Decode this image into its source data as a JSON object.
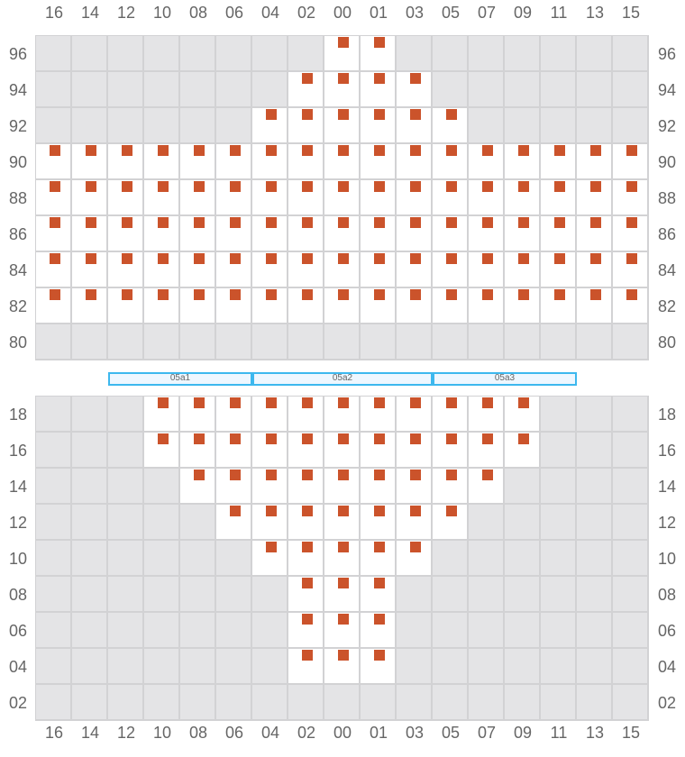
{
  "columns": [
    "16",
    "14",
    "12",
    "10",
    "08",
    "06",
    "04",
    "02",
    "00",
    "01",
    "03",
    "05",
    "07",
    "09",
    "11",
    "13",
    "15"
  ],
  "colors": {
    "seat": "#cb532b",
    "available": "#ffffff",
    "unavailable": "#e4e4e6",
    "section_border": "#3db8ee"
  },
  "top_block": {
    "rows": [
      {
        "label": "96",
        "seats": [
          "00",
          "01"
        ]
      },
      {
        "label": "94",
        "seats": [
          "02",
          "00",
          "01",
          "03"
        ]
      },
      {
        "label": "92",
        "seats": [
          "04",
          "02",
          "00",
          "01",
          "03",
          "05"
        ]
      },
      {
        "label": "90",
        "seats": [
          "16",
          "14",
          "12",
          "10",
          "08",
          "06",
          "04",
          "02",
          "00",
          "01",
          "03",
          "05",
          "07",
          "09",
          "11",
          "13",
          "15"
        ]
      },
      {
        "label": "88",
        "seats": [
          "16",
          "14",
          "12",
          "10",
          "08",
          "06",
          "04",
          "02",
          "00",
          "01",
          "03",
          "05",
          "07",
          "09",
          "11",
          "13",
          "15"
        ]
      },
      {
        "label": "86",
        "seats": [
          "16",
          "14",
          "12",
          "10",
          "08",
          "06",
          "04",
          "02",
          "00",
          "01",
          "03",
          "05",
          "07",
          "09",
          "11",
          "13",
          "15"
        ]
      },
      {
        "label": "84",
        "seats": [
          "16",
          "14",
          "12",
          "10",
          "08",
          "06",
          "04",
          "02",
          "00",
          "01",
          "03",
          "05",
          "07",
          "09",
          "11",
          "13",
          "15"
        ]
      },
      {
        "label": "82",
        "seats": [
          "16",
          "14",
          "12",
          "10",
          "08",
          "06",
          "04",
          "02",
          "00",
          "01",
          "03",
          "05",
          "07",
          "09",
          "11",
          "13",
          "15"
        ]
      },
      {
        "label": "80",
        "seats": []
      }
    ]
  },
  "sections": [
    {
      "label": "05a1",
      "from": "12",
      "to": "06"
    },
    {
      "label": "05a2",
      "from": "04",
      "to": "03"
    },
    {
      "label": "05a3",
      "from": "05",
      "to": "11"
    }
  ],
  "bottom_block": {
    "rows": [
      {
        "label": "18",
        "seats": [
          "10",
          "08",
          "06",
          "04",
          "02",
          "00",
          "01",
          "03",
          "05",
          "07",
          "09"
        ]
      },
      {
        "label": "16",
        "seats": [
          "10",
          "08",
          "06",
          "04",
          "02",
          "00",
          "01",
          "03",
          "05",
          "07",
          "09"
        ]
      },
      {
        "label": "14",
        "seats": [
          "08",
          "06",
          "04",
          "02",
          "00",
          "01",
          "03",
          "05",
          "07"
        ]
      },
      {
        "label": "12",
        "seats": [
          "06",
          "04",
          "02",
          "00",
          "01",
          "03",
          "05"
        ]
      },
      {
        "label": "10",
        "seats": [
          "04",
          "02",
          "00",
          "01",
          "03"
        ]
      },
      {
        "label": "08",
        "seats": [
          "02",
          "00",
          "01"
        ]
      },
      {
        "label": "06",
        "seats": [
          "02",
          "00",
          "01"
        ]
      },
      {
        "label": "04",
        "seats": [
          "02",
          "00",
          "01"
        ]
      },
      {
        "label": "02",
        "seats": []
      }
    ]
  }
}
